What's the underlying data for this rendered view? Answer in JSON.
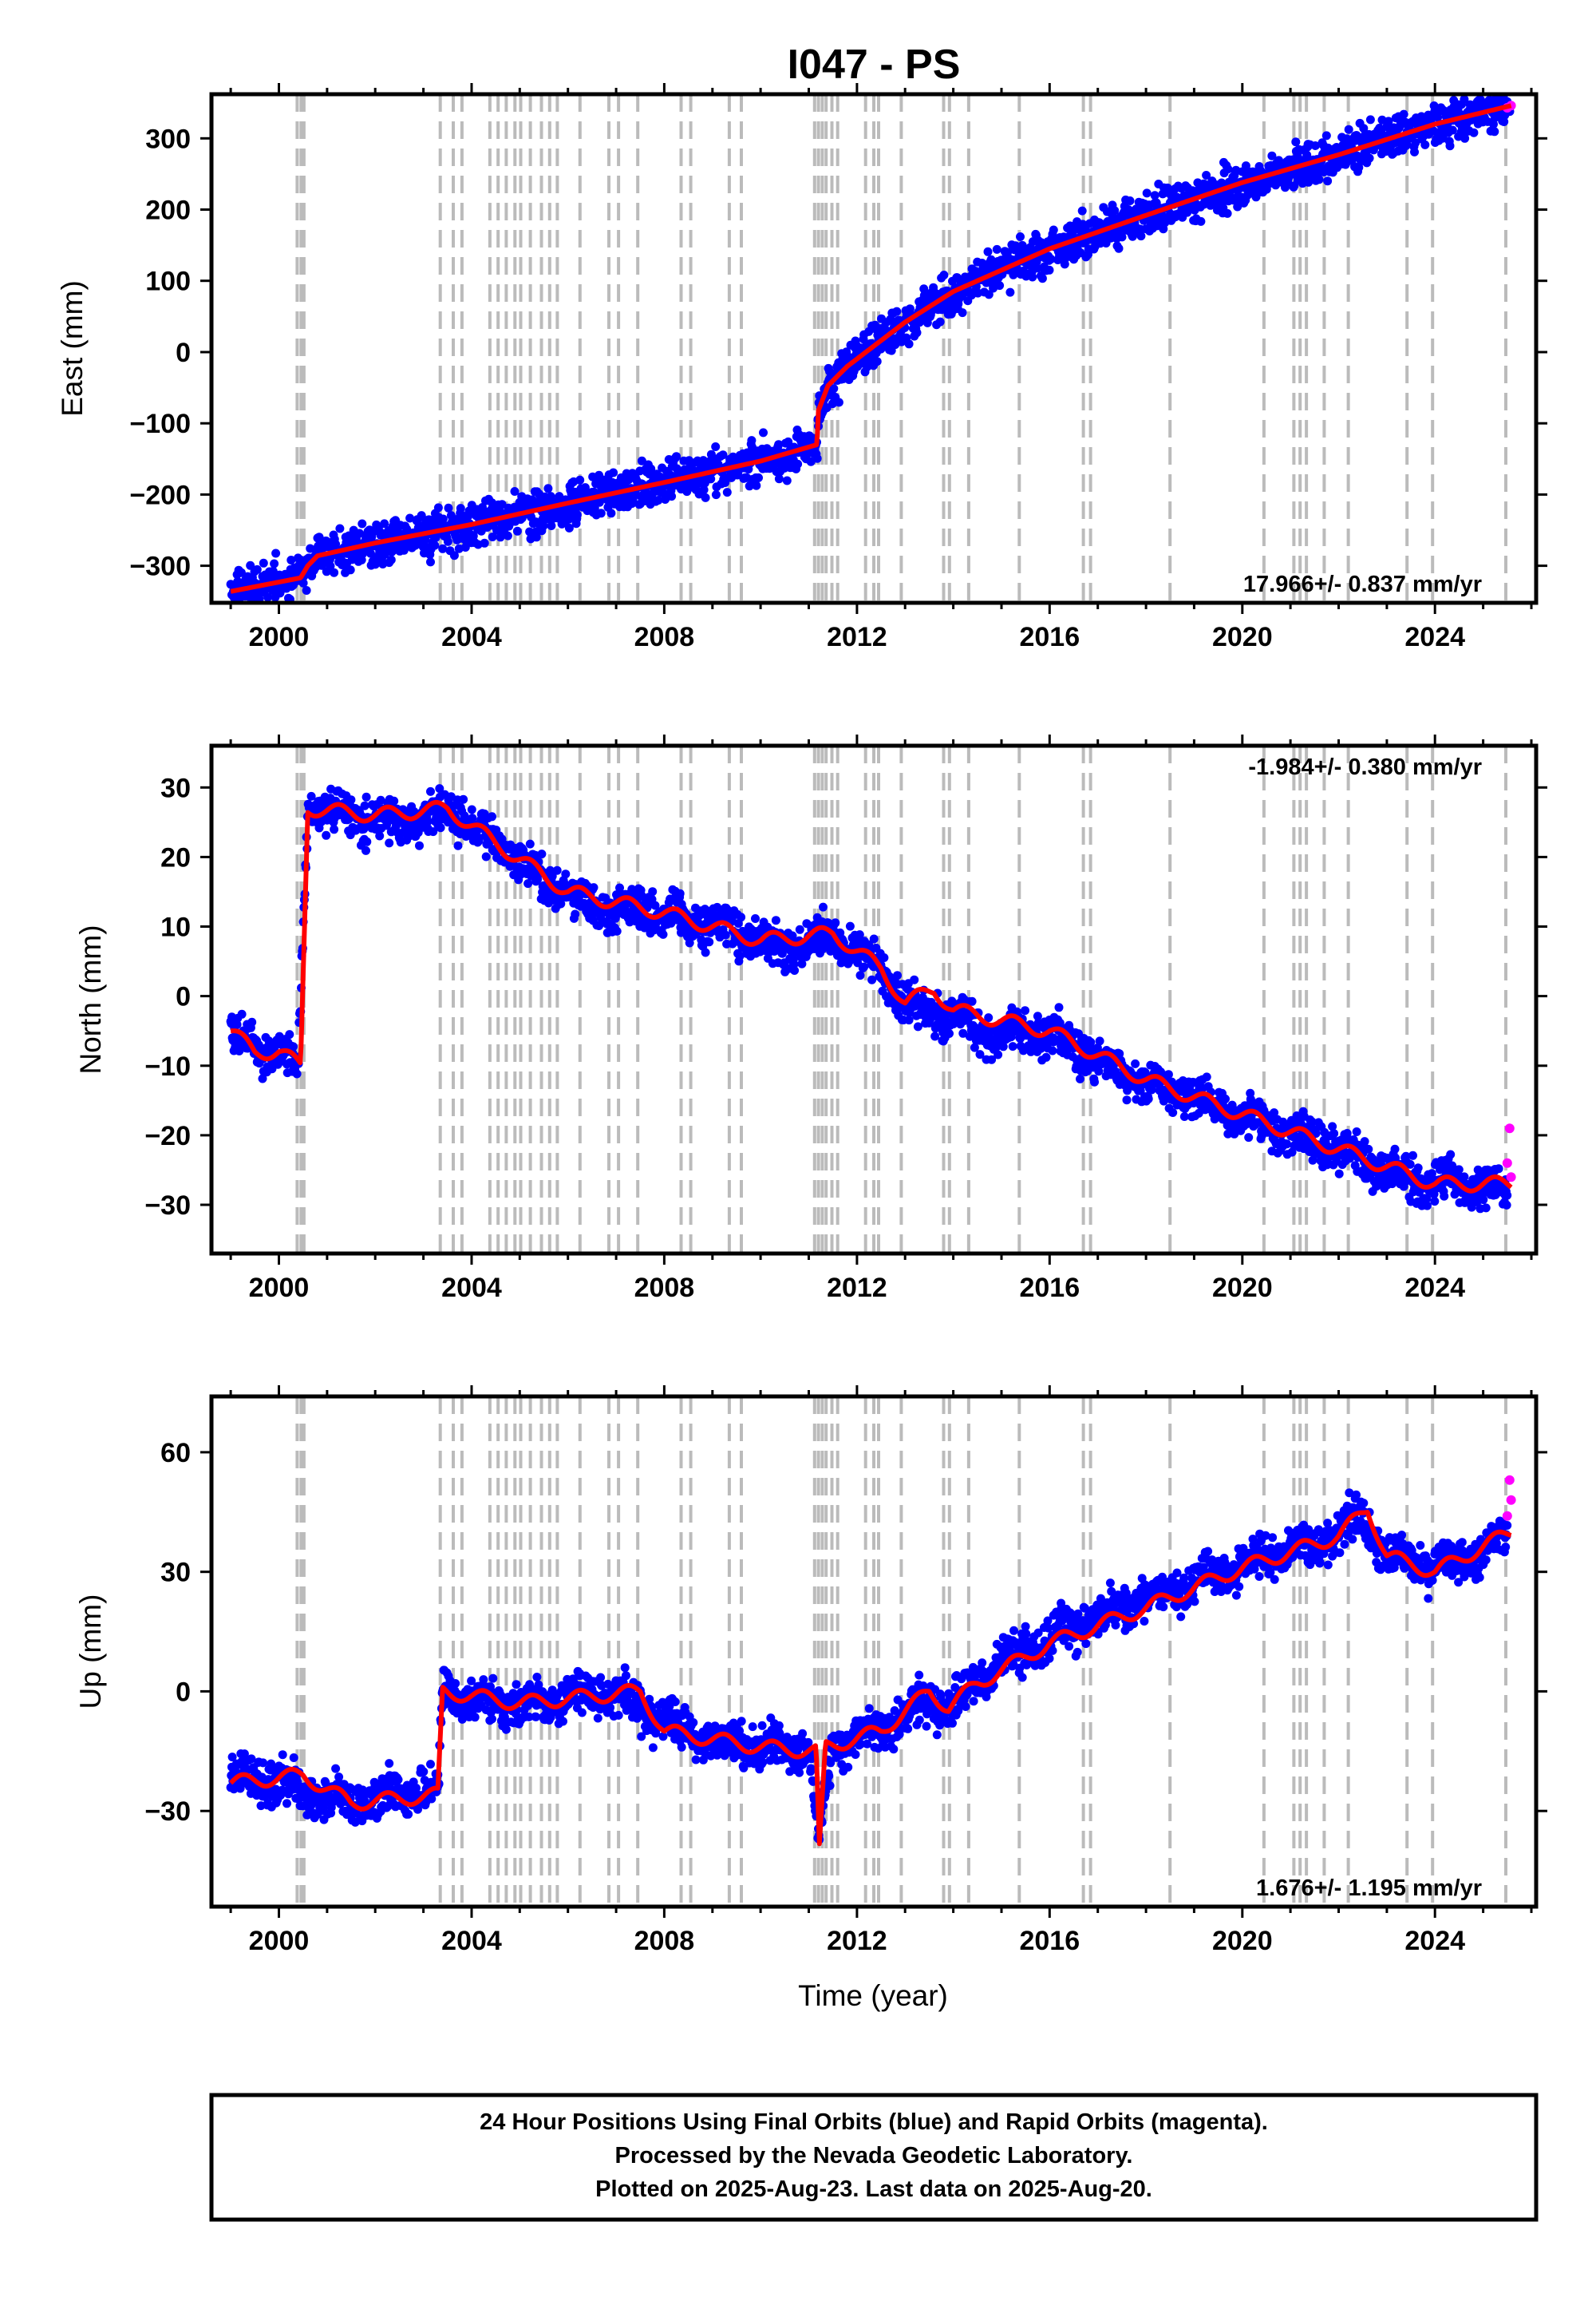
{
  "title": "I047 - PS",
  "x_label": "Time (year)",
  "footer_lines": [
    "24 Hour Positions Using Final Orbits (blue) and Rapid Orbits (magenta).",
    "Processed by the Nevada Geodetic Laboratory.",
    "Plotted on 2025-Aug-23. Last data on 2025-Aug-20."
  ],
  "colors": {
    "final_orbits": "#0000ff",
    "rapid_orbits": "#ff00ff",
    "model_fit": "#ff0000",
    "event_lines": "#bbbbbb",
    "frame": "#000000"
  },
  "chart_data": [
    {
      "type": "scatter",
      "panel": "east",
      "ylabel": "East (mm)",
      "rate_label": "17.966+/- 0.837 mm/yr",
      "rate_position": "bottom-right",
      "xlim": [
        1998.6,
        2026.1
      ],
      "ylim": [
        -352,
        362
      ],
      "xticks": [
        2000,
        2004,
        2008,
        2012,
        2016,
        2020,
        2024
      ],
      "yticks": [
        -300,
        -200,
        -100,
        0,
        100,
        200,
        300
      ],
      "ytick_labels": [
        "−300",
        "−200",
        "−100",
        "0",
        "100",
        "200",
        "300"
      ],
      "series": [
        {
          "values": [
            [
              1999.0,
              -336
            ],
            [
              1999.5,
              -330
            ],
            [
              2000.0,
              -323
            ],
            [
              2000.45,
              -317
            ],
            [
              2000.6,
              -300
            ],
            [
              2000.8,
              -286
            ],
            [
              2001.5,
              -277
            ],
            [
              2002.5,
              -262
            ],
            [
              2003.5,
              -250
            ],
            [
              2004.5,
              -236
            ],
            [
              2005.5,
              -222
            ],
            [
              2006.5,
              -205
            ],
            [
              2007.5,
              -190
            ],
            [
              2008.5,
              -176
            ],
            [
              2009.5,
              -161
            ],
            [
              2010.5,
              -145
            ],
            [
              2011.17,
              -130
            ],
            [
              2011.2,
              -82
            ],
            [
              2011.4,
              -47
            ],
            [
              2011.8,
              -20
            ],
            [
              2012.5,
              15
            ],
            [
              2013.5,
              62
            ],
            [
              2014.5,
              102
            ],
            [
              2015.5,
              130
            ],
            [
              2016.5,
              157
            ],
            [
              2017.5,
              182
            ],
            [
              2018.5,
              203
            ],
            [
              2019.5,
              226
            ],
            [
              2020.5,
              246
            ],
            [
              2021.5,
              265
            ],
            [
              2022.5,
              288
            ],
            [
              2023.5,
              310
            ],
            [
              2024.5,
              330
            ],
            [
              2025.58,
              346
            ]
          ]
        },
        {
          "values": [
            [
              2025.5,
              343
            ],
            [
              2025.58,
              346
            ]
          ]
        }
      ],
      "fit": [
        [
          1999.0,
          -336
        ],
        [
          2000.45,
          -317
        ],
        [
          2000.6,
          -300
        ],
        [
          2000.8,
          -286
        ],
        [
          2002.0,
          -268
        ],
        [
          2004.0,
          -242
        ],
        [
          2006.0,
          -212
        ],
        [
          2008.0,
          -183
        ],
        [
          2010.0,
          -153
        ],
        [
          2011.17,
          -130
        ],
        [
          2011.2,
          -82
        ],
        [
          2011.4,
          -47
        ],
        [
          2011.8,
          -20
        ],
        [
          2013.0,
          42
        ],
        [
          2014.0,
          85
        ],
        [
          2016.0,
          145
        ],
        [
          2018.0,
          192
        ],
        [
          2020.0,
          238
        ],
        [
          2022.0,
          277
        ],
        [
          2024.0,
          320
        ],
        [
          2025.58,
          346
        ]
      ]
    },
    {
      "type": "scatter",
      "panel": "north",
      "ylabel": "North (mm)",
      "rate_label": "-1.984+/- 0.380 mm/yr",
      "rate_position": "top-right",
      "xlim": [
        1998.6,
        2026.1
      ],
      "ylim": [
        -37,
        36
      ],
      "xticks": [
        2000,
        2004,
        2008,
        2012,
        2016,
        2020,
        2024
      ],
      "yticks": [
        -30,
        -20,
        -10,
        0,
        10,
        20,
        30
      ],
      "ytick_labels": [
        "−30",
        "−20",
        "−10",
        "0",
        "10",
        "20",
        "30"
      ],
      "series": [
        {
          "values": [
            [
              1999.0,
              -5
            ],
            [
              1999.5,
              -8
            ],
            [
              2000.0,
              -8
            ],
            [
              2000.4,
              -10
            ],
            [
              2000.6,
              27
            ],
            [
              2001.5,
              26
            ],
            [
              2002.5,
              25
            ],
            [
              2003.5,
              27
            ],
            [
              2004.5,
              22
            ],
            [
              2005.5,
              17
            ],
            [
              2006.5,
              13
            ],
            [
              2007.5,
              12
            ],
            [
              2008.5,
              11
            ],
            [
              2009.5,
              9
            ],
            [
              2010.5,
              7
            ],
            [
              2011.5,
              9
            ],
            [
              2012.5,
              4
            ],
            [
              2013.0,
              -1
            ],
            [
              2014.0,
              -3
            ],
            [
              2015.0,
              -6
            ],
            [
              2016.0,
              -5
            ],
            [
              2017.0,
              -9
            ],
            [
              2018.0,
              -12
            ],
            [
              2019.0,
              -15
            ],
            [
              2020.0,
              -17
            ],
            [
              2021.0,
              -20
            ],
            [
              2022.0,
              -22
            ],
            [
              2023.0,
              -25
            ],
            [
              2024.0,
              -27
            ],
            [
              2025.0,
              -27
            ],
            [
              2025.5,
              -28
            ]
          ]
        },
        {
          "values": [
            [
              2025.5,
              -24
            ],
            [
              2025.55,
              -19
            ],
            [
              2025.58,
              -26
            ]
          ]
        }
      ],
      "fit": [
        [
          1999.0,
          -5
        ],
        [
          1999.5,
          -8
        ],
        [
          2000.0,
          -8
        ],
        [
          2000.45,
          -10
        ],
        [
          2000.6,
          27
        ],
        [
          2002.0,
          26
        ],
        [
          2003.5,
          27
        ],
        [
          2004.5,
          22
        ],
        [
          2006.0,
          15
        ],
        [
          2008.0,
          12
        ],
        [
          2010.0,
          8
        ],
        [
          2011.5,
          9
        ],
        [
          2012.5,
          4
        ],
        [
          2013.0,
          -1
        ],
        [
          2013.6,
          1
        ],
        [
          2014.0,
          -2
        ],
        [
          2016.0,
          -5
        ],
        [
          2018.0,
          -12
        ],
        [
          2020.0,
          -17
        ],
        [
          2022.0,
          -22
        ],
        [
          2024.0,
          -27
        ],
        [
          2025.58,
          -27
        ]
      ]
    },
    {
      "type": "scatter",
      "panel": "up",
      "ylabel": "Up (mm)",
      "rate_label": "1.676+/- 1.195 mm/yr",
      "rate_position": "bottom-right",
      "xlim": [
        1998.6,
        2026.1
      ],
      "ylim": [
        -54,
        74
      ],
      "xticks": [
        2000,
        2004,
        2008,
        2012,
        2016,
        2020,
        2024
      ],
      "yticks": [
        -30,
        0,
        30,
        60
      ],
      "ytick_labels": [
        "−30",
        "0",
        "30",
        "60"
      ],
      "series": [
        {
          "values": [
            [
              1999.0,
              -22
            ],
            [
              2000.0,
              -22
            ],
            [
              2001.0,
              -27
            ],
            [
              2002.0,
              -27
            ],
            [
              2003.0,
              -24
            ],
            [
              2003.3,
              -26
            ],
            [
              2003.4,
              0
            ],
            [
              2004.0,
              -3
            ],
            [
              2005.0,
              -4
            ],
            [
              2006.0,
              -1
            ],
            [
              2007.0,
              0
            ],
            [
              2008.0,
              -8
            ],
            [
              2009.0,
              -12
            ],
            [
              2010.0,
              -14
            ],
            [
              2011.0,
              -14
            ],
            [
              2011.2,
              -38
            ],
            [
              2011.5,
              -13
            ],
            [
              2012.5,
              -10
            ],
            [
              2013.0,
              -5
            ],
            [
              2014.0,
              -3
            ],
            [
              2015.0,
              8
            ],
            [
              2016.0,
              13
            ],
            [
              2017.0,
              19
            ],
            [
              2018.0,
              23
            ],
            [
              2019.0,
              27
            ],
            [
              2020.0,
              32
            ],
            [
              2021.0,
              36
            ],
            [
              2022.0,
              39
            ],
            [
              2022.5,
              44
            ],
            [
              2023.0,
              34
            ],
            [
              2024.0,
              31
            ],
            [
              2025.0,
              35
            ],
            [
              2025.5,
              40
            ]
          ]
        },
        {
          "values": [
            [
              2025.5,
              44
            ],
            [
              2025.55,
              53
            ],
            [
              2025.58,
              48
            ]
          ]
        }
      ],
      "fit": [
        [
          1999.0,
          -23
        ],
        [
          2000.5,
          -21
        ],
        [
          2001.5,
          -28
        ],
        [
          2003.3,
          -26
        ],
        [
          2003.4,
          0
        ],
        [
          2005.0,
          -3
        ],
        [
          2007.5,
          0
        ],
        [
          2008.0,
          -10
        ],
        [
          2010.0,
          -14
        ],
        [
          2011.15,
          -15
        ],
        [
          2011.22,
          -40
        ],
        [
          2011.35,
          -14
        ],
        [
          2012.5,
          -10
        ],
        [
          2013.5,
          0
        ],
        [
          2013.9,
          -4
        ],
        [
          2014.5,
          2
        ],
        [
          2016.0,
          12
        ],
        [
          2018.0,
          21
        ],
        [
          2020.0,
          31
        ],
        [
          2022.0,
          39
        ],
        [
          2022.6,
          46
        ],
        [
          2023.0,
          34
        ],
        [
          2024.0,
          30
        ],
        [
          2025.58,
          40
        ]
      ]
    }
  ]
}
